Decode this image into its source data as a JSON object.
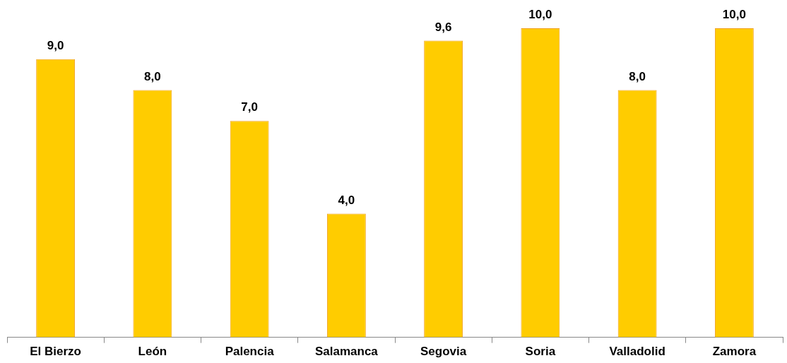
{
  "chart_data": {
    "type": "bar",
    "categories": [
      "El Bierzo",
      "León",
      "Palencia",
      "Salamanca",
      "Segovia",
      "Soria",
      "Valladolid",
      "Zamora"
    ],
    "values": [
      9.0,
      8.0,
      7.0,
      4.0,
      9.6,
      10.0,
      8.0,
      10.0
    ],
    "value_labels": [
      "9,0",
      "8,0",
      "7,0",
      "4,0",
      "9,6",
      "10,0",
      "8,0",
      "10,0"
    ],
    "color": "#ffcc00",
    "grid": false,
    "legend": false,
    "tick_labels": "x"
  }
}
